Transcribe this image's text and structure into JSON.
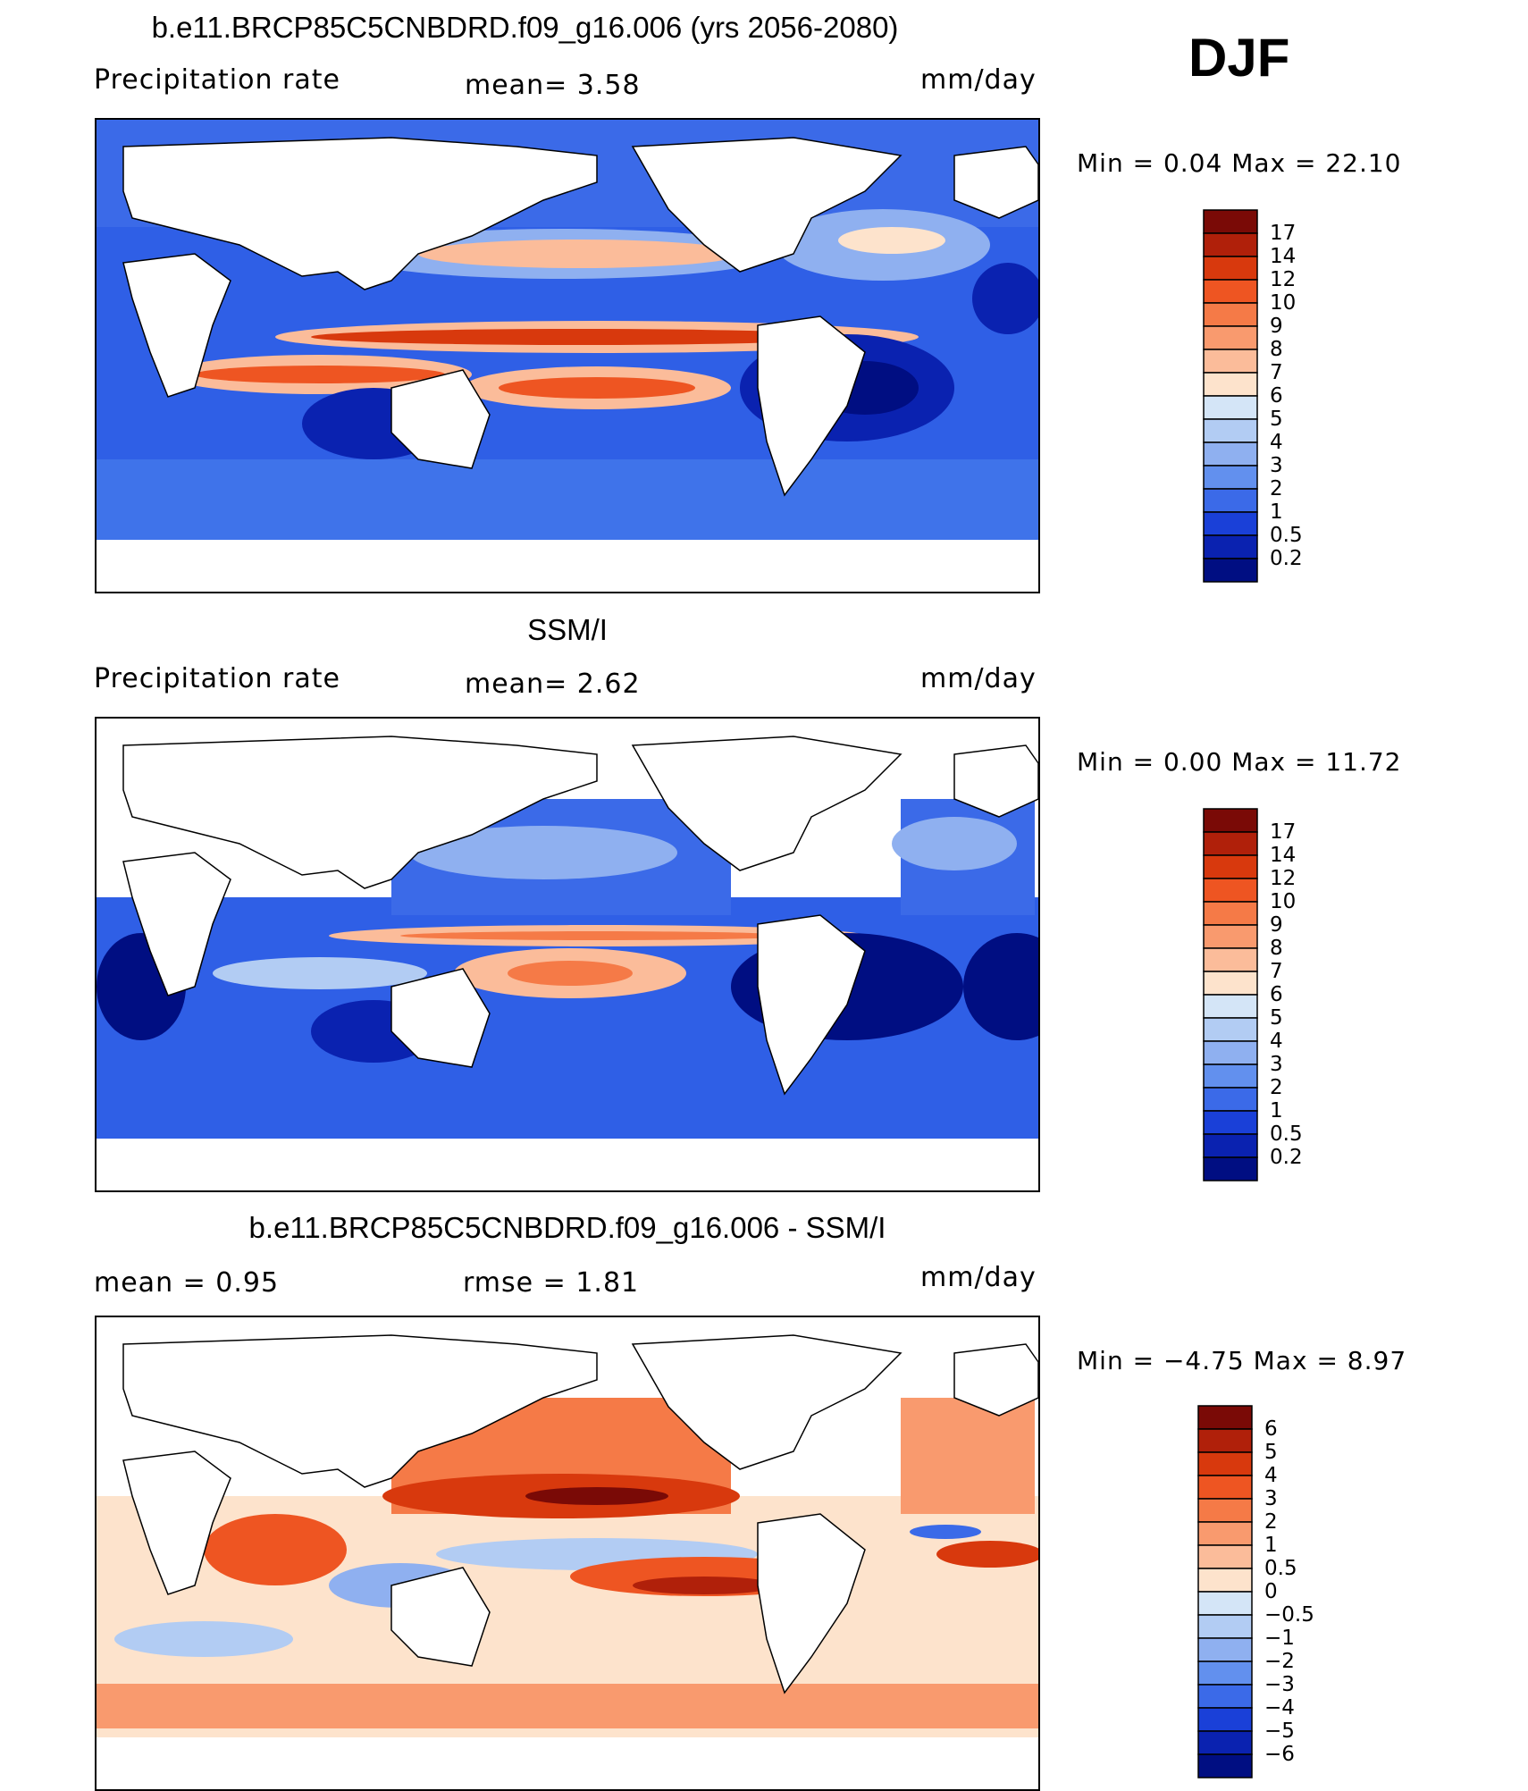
{
  "season": "DJF",
  "panels": [
    {
      "title": "b.e11.BRCP85C5CNBDRD.f09_g16.006 (yrs 2056-2080)",
      "left_label": "Precipitation  rate",
      "center_label": "mean=    3.58",
      "units": "mm/day",
      "min_max": "Min  =     0.04  Max  =    22.10"
    },
    {
      "title": "SSM/I",
      "left_label": "Precipitation  rate",
      "center_label": "mean=    2.62",
      "units": "mm/day",
      "min_max": "Min  =     0.00  Max  =    11.72"
    },
    {
      "title": "b.e11.BRCP85C5CNBDRD.f09_g16.006 - SSM/I",
      "left_label": "mean  =     0.95",
      "center_label": "rmse  =     1.81",
      "units": "mm/day",
      "min_max": "Min  =    −4.75  Max  =     8.97"
    }
  ],
  "colorbars": {
    "precip": {
      "labels": [
        "17",
        "14",
        "12",
        "10",
        "9",
        "8",
        "7",
        "6",
        "5",
        "4",
        "3",
        "2",
        "1",
        "0.5",
        "0.2"
      ],
      "colors": [
        "#7a0a06",
        "#b0200a",
        "#d8390d",
        "#ee5522",
        "#f57a47",
        "#f99a6e",
        "#fbbc9a",
        "#fde3cc",
        "#d4e5f7",
        "#b2ccf3",
        "#8fb0f0",
        "#6290ee",
        "#3b6ae8",
        "#1a40d8",
        "#0a22b0",
        "#000e82"
      ]
    },
    "diff": {
      "labels": [
        "6",
        "5",
        "4",
        "3",
        "2",
        "1",
        "0.5",
        "0",
        "−0.5",
        "−1",
        "−2",
        "−3",
        "−4",
        "−5",
        "−6"
      ],
      "colors": [
        "#7a0a06",
        "#b0200a",
        "#d8390d",
        "#ee5522",
        "#f57a47",
        "#f99a6e",
        "#fbbc9a",
        "#fde3cc",
        "#d4e5f7",
        "#b2ccf3",
        "#8fb0f0",
        "#6290ee",
        "#3b6ae8",
        "#1a40d8",
        "#0a22b0",
        "#000e82"
      ]
    }
  },
  "chart_data": [
    {
      "type": "heatmap",
      "title": "b.e11.BRCP85C5CNBDRD.f09_g16.006 (yrs 2056-2080)",
      "variable": "Precipitation rate",
      "units": "mm/day",
      "mean": 3.58,
      "min": 0.04,
      "max": 22.1,
      "contour_levels": [
        0.2,
        0.5,
        1,
        2,
        3,
        4,
        5,
        6,
        7,
        8,
        9,
        10,
        12,
        14,
        17
      ]
    },
    {
      "type": "heatmap",
      "title": "SSM/I",
      "variable": "Precipitation rate",
      "units": "mm/day",
      "mean": 2.62,
      "min": 0.0,
      "max": 11.72,
      "contour_levels": [
        0.2,
        0.5,
        1,
        2,
        3,
        4,
        5,
        6,
        7,
        8,
        9,
        10,
        12,
        14,
        17
      ]
    },
    {
      "type": "heatmap",
      "title": "b.e11.BRCP85C5CNBDRD.f09_g16.006 - SSM/I",
      "units": "mm/day",
      "mean": 0.95,
      "rmse": 1.81,
      "min": -4.75,
      "max": 8.97,
      "contour_levels": [
        -6,
        -5,
        -4,
        -3,
        -2,
        -1,
        -0.5,
        0,
        0.5,
        1,
        2,
        3,
        4,
        5,
        6
      ]
    }
  ]
}
